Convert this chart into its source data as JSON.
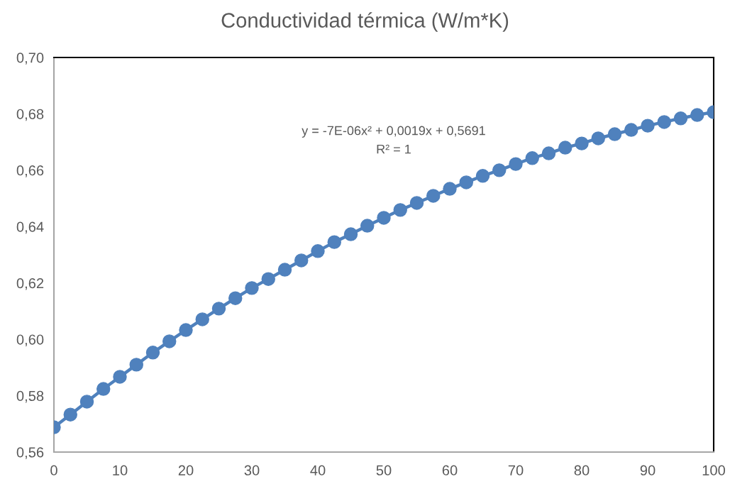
{
  "chart_data": {
    "type": "line",
    "title": "Conductividad térmica (W/m*K)",
    "x": [
      0,
      2.5,
      5,
      7.5,
      10,
      12.5,
      15,
      17.5,
      20,
      22.5,
      25,
      27.5,
      30,
      32.5,
      35,
      37.5,
      40,
      42.5,
      45,
      47.5,
      50,
      52.5,
      55,
      57.5,
      60,
      62.5,
      65,
      67.5,
      70,
      72.5,
      75,
      77.5,
      80,
      82.5,
      85,
      87.5,
      90,
      92.5,
      95,
      97.5,
      100
    ],
    "series": [
      {
        "color": "#4f81bd",
        "values": [
          0.5688,
          0.5733,
          0.5779,
          0.5824,
          0.5867,
          0.591,
          0.5953,
          0.5993,
          0.6033,
          0.6071,
          0.6109,
          0.6146,
          0.6182,
          0.6214,
          0.6247,
          0.628,
          0.6313,
          0.6345,
          0.6373,
          0.6403,
          0.6431,
          0.6459,
          0.6484,
          0.6509,
          0.6534,
          0.6557,
          0.658,
          0.66,
          0.6622,
          0.6643,
          0.666,
          0.668,
          0.6695,
          0.6713,
          0.6728,
          0.6743,
          0.6758,
          0.6771,
          0.6784,
          0.6796,
          0.6806
        ]
      }
    ],
    "marker": "circle",
    "line_style": "solid",
    "grid": false,
    "xlim": [
      0,
      100
    ],
    "xticks": [
      0,
      10,
      20,
      30,
      40,
      50,
      60,
      70,
      80,
      90,
      100
    ],
    "ylim": [
      0.56,
      0.7
    ],
    "yticks": [
      {
        "value": 0.56,
        "label": "0,56"
      },
      {
        "value": 0.58,
        "label": "0,58"
      },
      {
        "value": 0.6,
        "label": "0,60"
      },
      {
        "value": 0.62,
        "label": "0,62"
      },
      {
        "value": 0.64,
        "label": "0,64"
      },
      {
        "value": 0.66,
        "label": "0,66"
      },
      {
        "value": 0.68,
        "label": "0,68"
      },
      {
        "value": 0.7,
        "label": "0,70"
      }
    ],
    "annotations": [
      "y = -7E-06x² + 0,0019x + 0,5691",
      "R² = 1"
    ]
  }
}
